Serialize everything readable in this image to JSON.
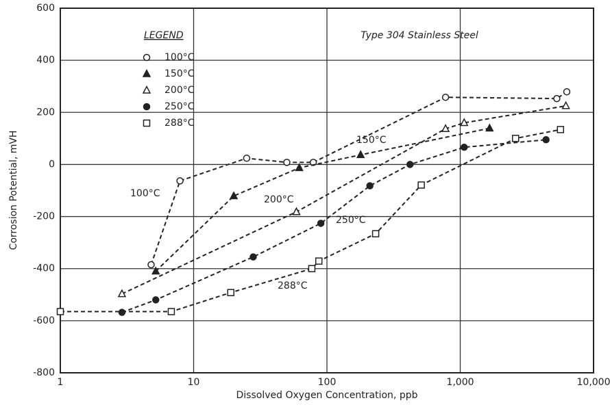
{
  "chart_data": {
    "type": "scatter-line",
    "title": "Type 304 Stainless Steel",
    "legend_title": "LEGEND",
    "x_label": "Dissolved Oxygen Concentration, ppb",
    "y_label": "Corrosion Potential, mVH",
    "x_log": true,
    "xlim": [
      1,
      10000
    ],
    "xticks": [
      1,
      10,
      100,
      {
        "value": 1000,
        "label": "1,000"
      },
      {
        "value": 10000,
        "label": "10,000"
      }
    ],
    "ylim": [
      -800,
      600
    ],
    "yticks": [
      600,
      400,
      200,
      0,
      -200,
      -400,
      -600,
      -800
    ],
    "grid": true,
    "legend": "upper left",
    "series": [
      {
        "name": "100°C",
        "color": "#222222",
        "marker": "circle-open",
        "x": [
          4.8,
          7.9,
          25,
          50,
          79,
          776,
          5300,
          6300
        ],
        "values": [
          -385,
          -63,
          24,
          8,
          8,
          258,
          253,
          279
        ]
      },
      {
        "name": "150°C",
        "color": "#222222",
        "marker": "triangle-filled",
        "x": [
          5.2,
          20,
          62,
          179,
          1660
        ],
        "values": [
          -410,
          -121,
          -13,
          37,
          139
        ]
      },
      {
        "name": "200°C",
        "color": "#222222",
        "marker": "triangle-open",
        "x": [
          2.9,
          59,
          776,
          1070,
          6200
        ],
        "values": [
          -497,
          -182,
          137,
          160,
          225
        ]
      },
      {
        "name": "250°C",
        "color": "#222222",
        "marker": "circle-filled",
        "x": [
          2.9,
          5.2,
          28,
          90,
          210,
          420,
          1070,
          4400
        ],
        "values": [
          -568,
          -520,
          -355,
          -226,
          -82,
          0,
          66,
          95
        ]
      },
      {
        "name": "288°C",
        "color": "#222222",
        "marker": "square-open",
        "x": [
          1,
          6.8,
          19,
          77,
          87,
          232,
          510,
          2600,
          5650
        ],
        "values": [
          -565,
          -565,
          -492,
          -400,
          -371,
          -266,
          -79,
          100,
          134
        ]
      }
    ]
  }
}
